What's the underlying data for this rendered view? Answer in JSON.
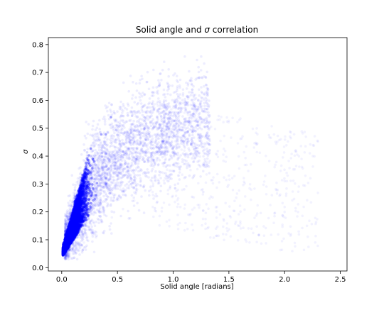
{
  "chart_data": {
    "type": "scatter",
    "title_prefix": "Solid angle and ",
    "title_symbol": "σ",
    "title_suffix": " correlation",
    "xlabel": "Solid angle [radians]",
    "ylabel": "σ",
    "xlim": [
      -0.12,
      2.56
    ],
    "ylim": [
      -0.012,
      0.825
    ],
    "x_ticks": [
      {
        "value": 0.0,
        "label": "0.0"
      },
      {
        "value": 0.5,
        "label": "0.5"
      },
      {
        "value": 1.0,
        "label": "1.0"
      },
      {
        "value": 1.5,
        "label": "1.5"
      },
      {
        "value": 2.0,
        "label": "2.0"
      },
      {
        "value": 2.5,
        "label": "2.5"
      }
    ],
    "y_ticks": [
      {
        "value": 0.0,
        "label": "0.0"
      },
      {
        "value": 0.1,
        "label": "0.1"
      },
      {
        "value": 0.2,
        "label": "0.2"
      },
      {
        "value": 0.3,
        "label": "0.3"
      },
      {
        "value": 0.4,
        "label": "0.4"
      },
      {
        "value": 0.5,
        "label": "0.5"
      },
      {
        "value": 0.6,
        "label": "0.6"
      },
      {
        "value": 0.7,
        "label": "0.7"
      },
      {
        "value": 0.8,
        "label": "0.8"
      }
    ],
    "grid": false,
    "marker_color": "#0000ff",
    "marker_alpha": 0.05,
    "series": [
      {
        "x": [
          0.02,
          0.04,
          0.05,
          0.06,
          0.08,
          0.1,
          0.12,
          0.15,
          0.18,
          0.2,
          0.25,
          0.3,
          0.35,
          0.4,
          0.5,
          0.6,
          0.7,
          0.8,
          0.9,
          1.0,
          1.1,
          1.2,
          1.3,
          1.5,
          1.7,
          2.0,
          2.2,
          0.1,
          0.15,
          0.2,
          0.3,
          0.45,
          0.55,
          0.65,
          0.8,
          0.95,
          1.05,
          0.25,
          0.35,
          0.5
        ],
        "y": [
          0.035,
          0.04,
          0.06,
          0.08,
          0.1,
          0.12,
          0.14,
          0.17,
          0.2,
          0.22,
          0.26,
          0.3,
          0.33,
          0.36,
          0.4,
          0.43,
          0.45,
          0.45,
          0.45,
          0.43,
          0.42,
          0.41,
          0.38,
          0.33,
          0.28,
          0.2,
          0.15,
          0.05,
          0.07,
          0.09,
          0.13,
          0.18,
          0.21,
          0.24,
          0.28,
          0.31,
          0.33,
          0.38,
          0.45,
          0.5
        ]
      }
    ]
  }
}
